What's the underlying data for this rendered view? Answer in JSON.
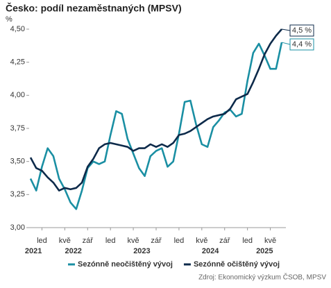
{
  "chart_data": {
    "type": "line",
    "title": "Česko: podíl nezaměstnaných (MPSV)",
    "y_label": "%",
    "categories": [
      null,
      null,
      "led",
      null,
      null,
      null,
      "kvě",
      null,
      null,
      null,
      "zář",
      null,
      null,
      null,
      "led",
      null,
      null,
      null,
      "kvě",
      null,
      null,
      null,
      "zář",
      null,
      null,
      null,
      "led",
      null,
      null,
      null,
      "kvě",
      null,
      null,
      null,
      "zář",
      null,
      null,
      null,
      "led",
      null,
      null,
      null,
      "kvě",
      null,
      null
    ],
    "year_labels": [
      "2021",
      "2022",
      "2023",
      "2024",
      "2025"
    ],
    "series": [
      {
        "name": "Sezónně neočištěný vývoj",
        "color": "#1a8fa3",
        "end_label": "4,4 %",
        "values": [
          3.37,
          3.28,
          3.46,
          3.6,
          3.54,
          3.37,
          3.29,
          3.19,
          3.14,
          3.28,
          3.45,
          3.5,
          3.48,
          3.5,
          3.7,
          3.88,
          3.86,
          3.67,
          3.56,
          3.45,
          3.39,
          3.54,
          3.58,
          3.6,
          3.46,
          3.5,
          3.71,
          3.95,
          3.96,
          3.78,
          3.63,
          3.61,
          3.76,
          3.81,
          3.87,
          3.89,
          3.84,
          3.86,
          4.11,
          4.32,
          4.39,
          4.3,
          4.2,
          4.2,
          4.4
        ]
      },
      {
        "name": "Sezónně očištěný vývoj",
        "color": "#0d2a4a",
        "end_label": "4,5 %",
        "values": [
          3.53,
          3.45,
          3.43,
          3.38,
          3.34,
          3.28,
          3.3,
          3.29,
          3.3,
          3.34,
          3.46,
          3.52,
          3.6,
          3.63,
          3.64,
          3.63,
          3.62,
          3.61,
          3.58,
          3.6,
          3.6,
          3.63,
          3.61,
          3.63,
          3.61,
          3.64,
          3.7,
          3.71,
          3.73,
          3.76,
          3.79,
          3.82,
          3.84,
          3.85,
          3.86,
          3.9,
          3.97,
          3.99,
          4.01,
          4.1,
          4.2,
          4.31,
          4.39,
          4.45,
          4.5
        ]
      }
    ],
    "ylim": [
      3,
      4.5
    ],
    "yticks": [
      {
        "value": 3,
        "label": "3,00"
      },
      {
        "value": 3.25,
        "label": "3,25"
      },
      {
        "value": 3.5,
        "label": "3,50"
      },
      {
        "value": 3.75,
        "label": "3,75"
      },
      {
        "value": 4,
        "label": "4,00"
      },
      {
        "value": 4.25,
        "label": "4,25"
      },
      {
        "value": 4.5,
        "label": "4,50"
      }
    ],
    "source": "Zdroj: Ekonomický výzkum ČSOB, MPSV"
  }
}
